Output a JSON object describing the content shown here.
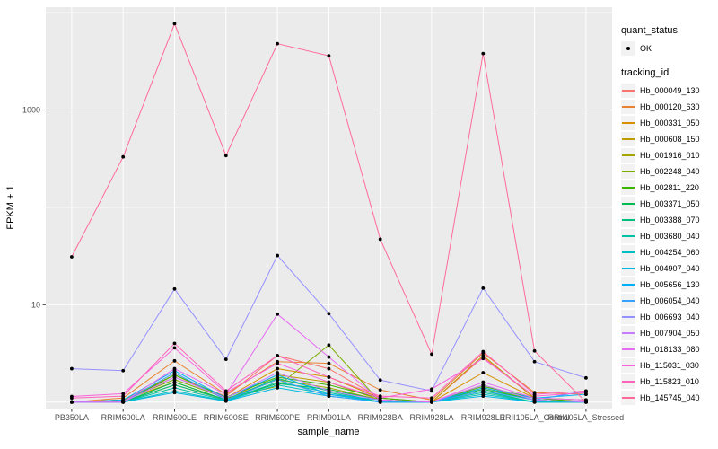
{
  "theme": {
    "panel_bg": "#ebebeb",
    "grid_color": "#ffffff",
    "tick_color": "#333333",
    "tick_label_color": "#4d4d4d",
    "legend_key_bg": "#f2f2f2",
    "point_color": "#000000"
  },
  "legend": {
    "quant_status_title": "quant_status",
    "quant_status_items": [
      {
        "label": "OK"
      }
    ],
    "tracking_id_title": "tracking_id"
  },
  "chart_data": {
    "type": "line",
    "xlabel": "sample_name",
    "ylabel": "FPKM + 1",
    "y_scale": "log10",
    "y_ticks": [
      {
        "label": "1000",
        "value": 1000
      },
      {
        "label": "10",
        "value": 10
      }
    ],
    "y_gridlines": [
      1,
      10,
      100,
      1000,
      10000
    ],
    "ylim": [
      0.65,
      11000
    ],
    "grid": true,
    "legend_position": "right",
    "categories": [
      "PB350LA",
      "RRIM600LA",
      "RRIM600LE",
      "RRIM600SE",
      "RRIM600PE",
      "RRIM901LA",
      "RRIM928BA",
      "RRIM928LA",
      "RRIM928LE",
      "RRII105LA_Control",
      "RRII105LA_Stressed"
    ],
    "series": [
      {
        "name": "Hb_000049_130",
        "color": "#F8766D",
        "values": [
          1.0,
          1.05,
          1.8,
          1.15,
          3.0,
          2.2,
          1.1,
          1.0,
          2.9,
          1.1,
          1.05
        ]
      },
      {
        "name": "Hb_000120_630",
        "color": "#EA8331",
        "values": [
          1.0,
          1.1,
          2.65,
          1.2,
          2.6,
          2.5,
          1.33,
          1.05,
          3.2,
          1.25,
          1.2
        ]
      },
      {
        "name": "Hb_000331_050",
        "color": "#D89000",
        "values": [
          1.0,
          1.05,
          1.9,
          1.1,
          2.2,
          1.8,
          1.1,
          1.0,
          2.0,
          1.1,
          1.05
        ]
      },
      {
        "name": "Hb_000608_150",
        "color": "#C09B00",
        "values": [
          1.0,
          1.05,
          1.6,
          1.05,
          1.9,
          1.6,
          1.05,
          1.0,
          3.0,
          1.1,
          1.0
        ]
      },
      {
        "name": "Hb_001916_010",
        "color": "#A3A500",
        "values": [
          1.0,
          1.0,
          1.5,
          1.05,
          1.7,
          1.4,
          1.05,
          1.0,
          1.5,
          1.05,
          1.0
        ]
      },
      {
        "name": "Hb_002248_040",
        "color": "#7CAE00",
        "values": [
          1.0,
          1.05,
          1.7,
          1.1,
          1.45,
          3.85,
          1.0,
          1.0,
          1.4,
          1.05,
          1.0
        ]
      },
      {
        "name": "Hb_002811_220",
        "color": "#39B600",
        "values": [
          1.0,
          1.0,
          1.9,
          1.12,
          1.8,
          1.5,
          1.1,
          1.0,
          1.45,
          1.1,
          1.0
        ]
      },
      {
        "name": "Hb_003371_050",
        "color": "#00BB4E",
        "values": [
          1.0,
          1.0,
          1.6,
          1.05,
          1.55,
          1.35,
          1.05,
          1.0,
          1.35,
          1.05,
          1.0
        ]
      },
      {
        "name": "Hb_003388_070",
        "color": "#00BF7D",
        "values": [
          1.0,
          1.0,
          1.5,
          1.06,
          1.75,
          1.3,
          1.0,
          1.0,
          1.3,
          1.0,
          1.0
        ]
      },
      {
        "name": "Hb_003680_040",
        "color": "#00C1A3",
        "values": [
          1.0,
          1.0,
          1.4,
          1.04,
          1.6,
          1.25,
          1.0,
          1.0,
          1.25,
          1.0,
          1.0
        ]
      },
      {
        "name": "Hb_004254_060",
        "color": "#00BFC4",
        "values": [
          1.0,
          1.0,
          1.3,
          1.03,
          1.5,
          1.2,
          1.0,
          1.0,
          1.2,
          1.0,
          1.0
        ]
      },
      {
        "name": "Hb_004907_040",
        "color": "#00BAE0",
        "values": [
          1.0,
          1.0,
          1.25,
          1.02,
          1.4,
          1.15,
          1.0,
          1.0,
          1.15,
          1.0,
          1.0
        ]
      },
      {
        "name": "Hb_005656_130",
        "color": "#00B0F6",
        "values": [
          1.0,
          1.05,
          2.1,
          1.1,
          1.9,
          1.2,
          1.05,
          1.0,
          1.4,
          1.1,
          1.2
        ]
      },
      {
        "name": "Hb_006054_040",
        "color": "#35A2FF",
        "values": [
          1.0,
          1.0,
          2.0,
          1.05,
          1.7,
          1.15,
          1.0,
          1.0,
          1.3,
          1.05,
          1.3
        ]
      },
      {
        "name": "Hb_006693_040",
        "color": "#9590FF",
        "values": [
          2.2,
          2.1,
          14.5,
          2.75,
          32,
          8.1,
          1.68,
          1.3,
          14.8,
          2.6,
          1.77
        ]
      },
      {
        "name": "Hb_007904_050",
        "color": "#C77CFF",
        "values": [
          1.0,
          1.0,
          1.8,
          1.1,
          2.0,
          1.3,
          1.05,
          1.0,
          1.5,
          1.05,
          1.0
        ]
      },
      {
        "name": "Hb_018133_080",
        "color": "#E76BF3",
        "values": [
          1.0,
          1.0,
          2.2,
          1.2,
          8.0,
          2.9,
          1.05,
          1.0,
          1.6,
          1.1,
          1.05
        ]
      },
      {
        "name": "Hb_115031_030",
        "color": "#FA62DB",
        "values": [
          1.14,
          1.22,
          3.6,
          1.25,
          2.5,
          1.6,
          1.1,
          1.36,
          2.8,
          1.15,
          1.25
        ]
      },
      {
        "name": "Hb_115823_010",
        "color": "#FF62BC",
        "values": [
          1.1,
          1.15,
          4.0,
          1.3,
          3.0,
          1.8,
          1.15,
          1.1,
          3.3,
          1.2,
          1.3
        ]
      },
      {
        "name": "Hb_145745_040",
        "color": "#FF6A98",
        "values": [
          31,
          330,
          7700,
          340,
          4800,
          3600,
          47,
          3.1,
          3800,
          3.35,
          1.0
        ]
      }
    ]
  }
}
